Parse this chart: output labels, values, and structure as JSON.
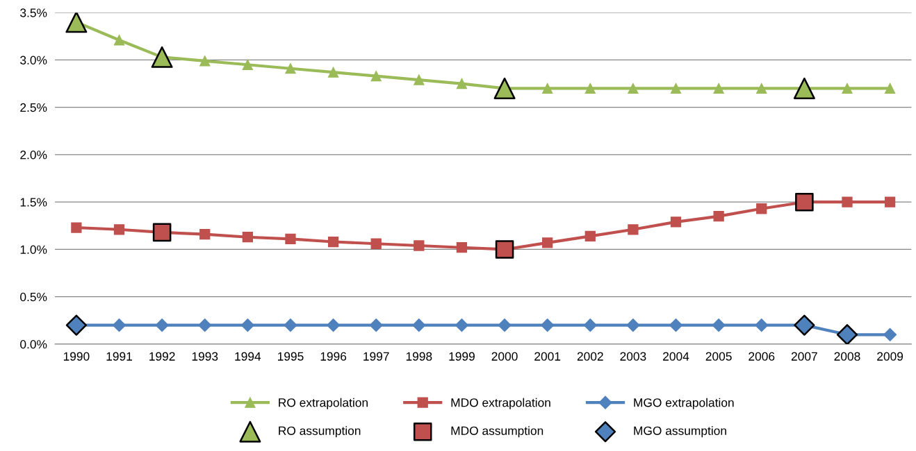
{
  "chart_data": {
    "type": "line",
    "categories": [
      "1990",
      "1991",
      "1992",
      "1993",
      "1994",
      "1995",
      "1996",
      "1997",
      "1998",
      "1999",
      "2000",
      "2001",
      "2002",
      "2003",
      "2004",
      "2005",
      "2006",
      "2007",
      "2008",
      "2009"
    ],
    "series": [
      {
        "name": "RO extrapolation",
        "color": "#9bbb59",
        "marker": "triangle",
        "values": [
          3.4,
          3.21,
          3.03,
          2.99,
          2.95,
          2.91,
          2.87,
          2.83,
          2.79,
          2.75,
          2.7,
          2.7,
          2.7,
          2.7,
          2.7,
          2.7,
          2.7,
          2.7,
          2.7,
          2.7
        ]
      },
      {
        "name": "RO assumption",
        "type": "scatter",
        "color": "#9bbb59",
        "marker": "triangle",
        "values": [
          3.4,
          null,
          3.03,
          null,
          null,
          null,
          null,
          null,
          null,
          null,
          2.7,
          null,
          null,
          null,
          null,
          null,
          null,
          2.7,
          null,
          null
        ]
      },
      {
        "name": "MDO extrapolation",
        "color": "#c0504d",
        "marker": "square",
        "values": [
          1.23,
          1.21,
          1.18,
          1.16,
          1.13,
          1.11,
          1.08,
          1.06,
          1.04,
          1.02,
          1.0,
          1.07,
          1.14,
          1.21,
          1.29,
          1.35,
          1.43,
          1.5,
          1.5,
          1.5
        ]
      },
      {
        "name": "MDO assumption",
        "type": "scatter",
        "color": "#c0504d",
        "marker": "square",
        "values": [
          null,
          null,
          1.18,
          null,
          null,
          null,
          null,
          null,
          null,
          null,
          1.0,
          null,
          null,
          null,
          null,
          null,
          null,
          1.5,
          null,
          null
        ]
      },
      {
        "name": "MGO extrapolation",
        "color": "#4f81bd",
        "marker": "diamond",
        "values": [
          0.2,
          0.2,
          0.2,
          0.2,
          0.2,
          0.2,
          0.2,
          0.2,
          0.2,
          0.2,
          0.2,
          0.2,
          0.2,
          0.2,
          0.2,
          0.2,
          0.2,
          0.2,
          0.1,
          0.1
        ]
      },
      {
        "name": "MGO assumption",
        "type": "scatter",
        "color": "#4f81bd",
        "marker": "diamond",
        "values": [
          0.2,
          null,
          null,
          null,
          null,
          null,
          null,
          null,
          null,
          null,
          null,
          null,
          null,
          null,
          null,
          null,
          null,
          0.2,
          0.1,
          null
        ]
      }
    ],
    "ylim": [
      0,
      3.5
    ],
    "yticks": [
      {
        "value": 0,
        "label": "0.0%"
      },
      {
        "value": 0.5,
        "label": "0.5%"
      },
      {
        "value": 1.0,
        "label": "1.0%"
      },
      {
        "value": 1.5,
        "label": "1.5%"
      },
      {
        "value": 2.0,
        "label": "2.0%"
      },
      {
        "value": 2.5,
        "label": "2.5%"
      },
      {
        "value": 3.0,
        "label": "3.0%"
      },
      {
        "value": 3.5,
        "label": "3.5%"
      }
    ],
    "grid": "y",
    "legend": "bottom",
    "line_style": "solid"
  }
}
